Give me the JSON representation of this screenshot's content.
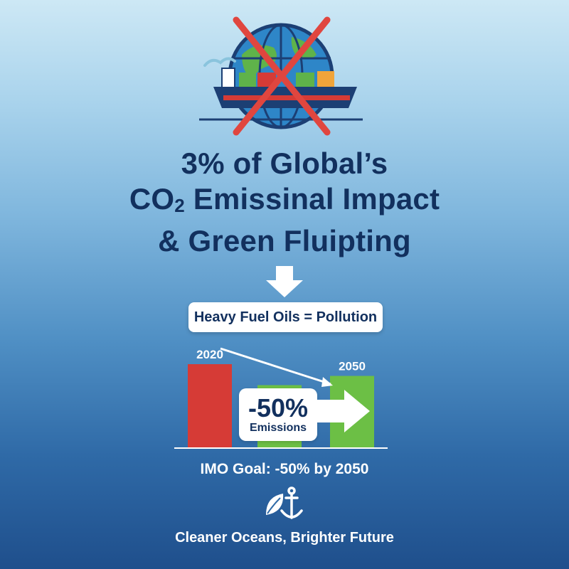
{
  "title": {
    "line1": "3% of Global’s",
    "line2_prefix": "CO",
    "line2_sub": "2",
    "line2_suffix": " Emissinal Impact",
    "line3": "& Green Fluipting"
  },
  "label": "Heavy Fuel Oils = Pollution",
  "chart_data": {
    "type": "bar",
    "categories": [
      "2020",
      "",
      "2050"
    ],
    "values": [
      100,
      75,
      86
    ],
    "colors": [
      "#d63b36",
      "#6cbf45",
      "#6cbf45"
    ],
    "xlabel": "",
    "ylabel": "",
    "tick_labels": [
      "2020",
      "2050"
    ]
  },
  "callout": {
    "value": "-50%",
    "label": "Emissions"
  },
  "goal": "IMO Goal: -50% by 2050",
  "tagline": "Cleaner Oceans, Brighter Future",
  "icons": {
    "hero": "crossed-globe-ship-icon",
    "down": "down-arrow-icon",
    "footer": "leaf-anchor-icon"
  },
  "colors": {
    "title": "#12305e",
    "red": "#d63b36",
    "green": "#6cbf45",
    "cross": "#e0463f"
  }
}
